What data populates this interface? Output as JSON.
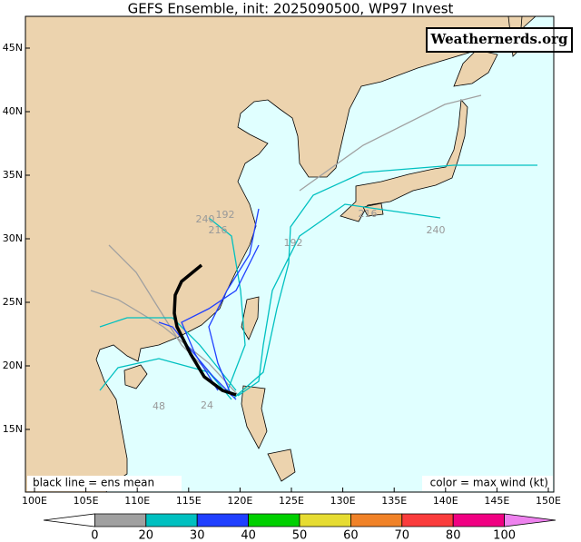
{
  "title": "GEFS Ensemble, init: 2025090500, WP97 Invest",
  "watermark": "Weathernerds.org",
  "latitude_labels": [
    "45N",
    "40N",
    "35N",
    "30N",
    "25N",
    "20N",
    "15N"
  ],
  "longitude_labels": [
    "100E",
    "105E",
    "110E",
    "115E",
    "120E",
    "125E",
    "130E",
    "135E",
    "140E",
    "145E",
    "150E"
  ],
  "notes": {
    "left": "black line = ens mean",
    "right": "color = max wind (kt)"
  },
  "track_labels": [
    "240",
    "192",
    "216",
    "216",
    "240",
    "192",
    "48",
    "24"
  ],
  "colorbar": {
    "ticks": [
      0,
      20,
      30,
      40,
      50,
      60,
      70,
      80,
      100
    ],
    "colors": [
      "#ffffff",
      "#a0a0a0",
      "#00c0c0",
      "#2040ff",
      "#00d000",
      "#e6dc32",
      "#f08228",
      "#fa3c3c",
      "#f00082",
      "#ee82ee"
    ]
  }
}
